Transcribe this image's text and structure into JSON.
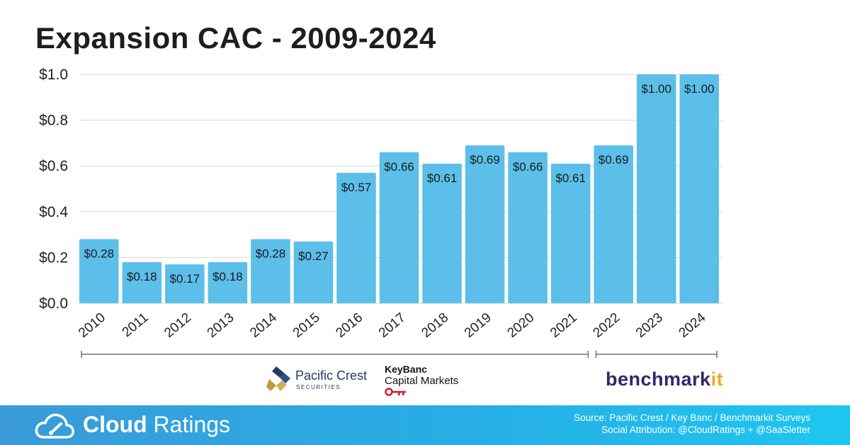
{
  "title": "Expansion CAC - 2009-2024",
  "chart_data": {
    "type": "bar",
    "title": "Expansion CAC - 2009-2024",
    "xlabel": "",
    "ylabel": "",
    "categories": [
      "2010",
      "2011",
      "2012",
      "2013",
      "2014",
      "2015",
      "2016",
      "2017",
      "2018",
      "2019",
      "2020",
      "2021",
      "2022",
      "2023",
      "2024"
    ],
    "values": [
      0.28,
      0.18,
      0.17,
      0.18,
      0.28,
      0.27,
      0.57,
      0.66,
      0.61,
      0.69,
      0.66,
      0.61,
      0.69,
      1.0,
      1.0
    ],
    "data_labels": [
      "$0.28",
      "$0.18",
      "$0.17",
      "$0.18",
      "$0.28",
      "$0.27",
      "$0.57",
      "$0.66",
      "$0.61",
      "$0.69",
      "$0.66",
      "$0.61",
      "$0.69",
      "$1.00",
      "$1.00"
    ],
    "ylim": [
      0,
      1.0
    ],
    "yticks": [
      0,
      0.2,
      0.4,
      0.6,
      0.8,
      1.0
    ],
    "ytick_labels": [
      "$0.0",
      "$0.2",
      "$0.4",
      "$0.6",
      "$0.8",
      "$1.0"
    ],
    "grid": true,
    "bar_color": "#5bbfe9"
  },
  "sources": {
    "pacific_crest": {
      "name": "Pacific Crest",
      "sub": "SECURITIES",
      "years": [
        "2010",
        "2021"
      ]
    },
    "keybanc": {
      "top": "KeyBanc",
      "sub": "Capital Markets"
    },
    "benchmarkit": {
      "name_main": "benchmark",
      "name_accent": "it",
      "accent_color": "#f5a623",
      "years": [
        "2022",
        "2024"
      ]
    }
  },
  "footer": {
    "brand_bold": "Cloud",
    "brand_light": " Ratings",
    "source_line": "Source: Pacific Crest / Key Banc / Benchmarkit Surveys",
    "attribution_line": "Social Attribution: @CloudRatings + @SaaSletter",
    "icon": "cloud-gauge-icon"
  }
}
